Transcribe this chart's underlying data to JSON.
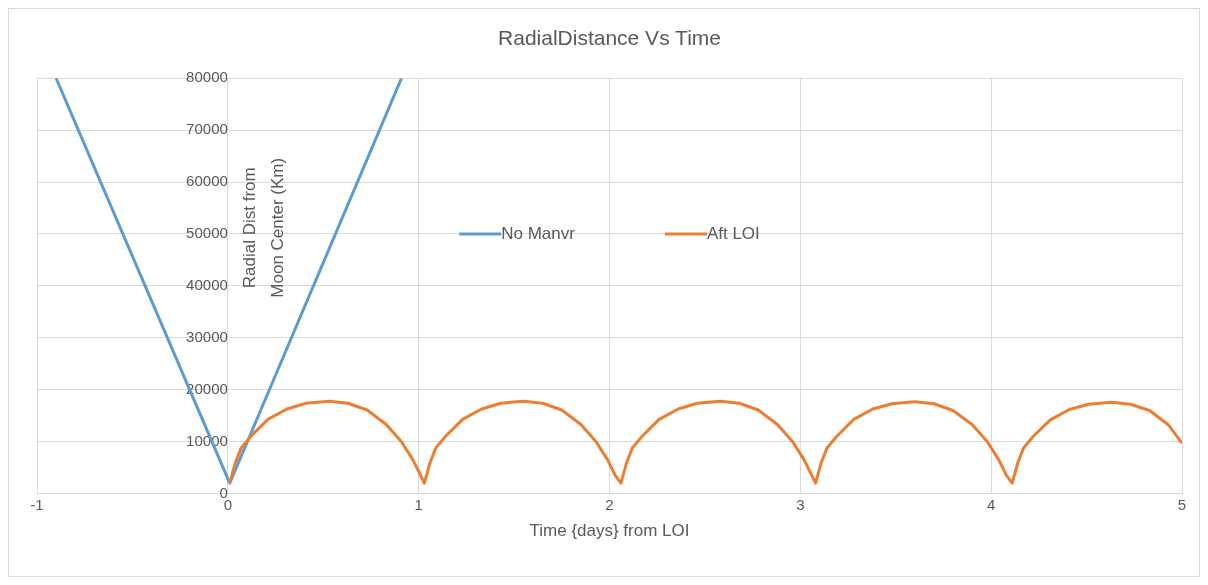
{
  "chart_data": {
    "type": "line",
    "title": "RadialDistance Vs Time",
    "xlabel": "Time {days} from LOI",
    "ylabel": "Radial Dist from Moon Center (Km)",
    "xlim": [
      -1,
      5
    ],
    "xticks": [
      -1,
      0,
      1,
      2,
      3,
      4,
      5
    ],
    "ylim": [
      0,
      80000
    ],
    "yticks": [
      0,
      10000,
      20000,
      30000,
      40000,
      50000,
      60000,
      70000,
      80000
    ],
    "grid": true,
    "legend": "center",
    "marker": "none",
    "line_style": "solid",
    "series": [
      {
        "name": "No Manvr",
        "color": "#5b9bd5",
        "x": [
          -0.9,
          0.01,
          0.91
        ],
        "values": [
          80000,
          2000,
          80000
        ]
      },
      {
        "name": "Aft LOI",
        "color": "#ed7d31",
        "x": [
          0.01,
          0.04,
          0.07,
          0.12,
          0.21,
          0.31,
          0.41,
          0.53,
          0.63,
          0.73,
          0.83,
          0.91,
          0.97,
          1.01,
          1.03,
          1.06,
          1.09,
          1.14,
          1.23,
          1.33,
          1.43,
          1.55,
          1.65,
          1.75,
          1.85,
          1.93,
          1.99,
          2.03,
          2.06,
          2.09,
          2.12,
          2.17,
          2.26,
          2.36,
          2.46,
          2.58,
          2.68,
          2.78,
          2.88,
          2.96,
          3.02,
          3.06,
          3.08,
          3.11,
          3.14,
          3.19,
          3.28,
          3.38,
          3.48,
          3.6,
          3.7,
          3.8,
          3.9,
          3.98,
          4.04,
          4.08,
          4.11,
          4.14,
          4.17,
          4.22,
          4.31,
          4.41,
          4.51,
          4.63,
          4.73,
          4.83,
          4.93,
          5.0
        ],
        "values": [
          2000,
          6000,
          8800,
          11000,
          14300,
          16300,
          17400,
          17800,
          17400,
          16100,
          13300,
          10000,
          6500,
          3500,
          2000,
          6000,
          8800,
          11000,
          14300,
          16300,
          17400,
          17800,
          17400,
          16100,
          13300,
          10000,
          6500,
          3500,
          2000,
          6000,
          8800,
          11000,
          14300,
          16300,
          17400,
          17800,
          17400,
          16100,
          13300,
          10000,
          6500,
          3500,
          2000,
          6000,
          8800,
          11000,
          14300,
          16300,
          17300,
          17700,
          17300,
          16000,
          13300,
          10000,
          6500,
          3500,
          2000,
          6000,
          8800,
          11000,
          14200,
          16200,
          17200,
          17600,
          17200,
          16000,
          13200,
          9700
        ]
      }
    ]
  }
}
